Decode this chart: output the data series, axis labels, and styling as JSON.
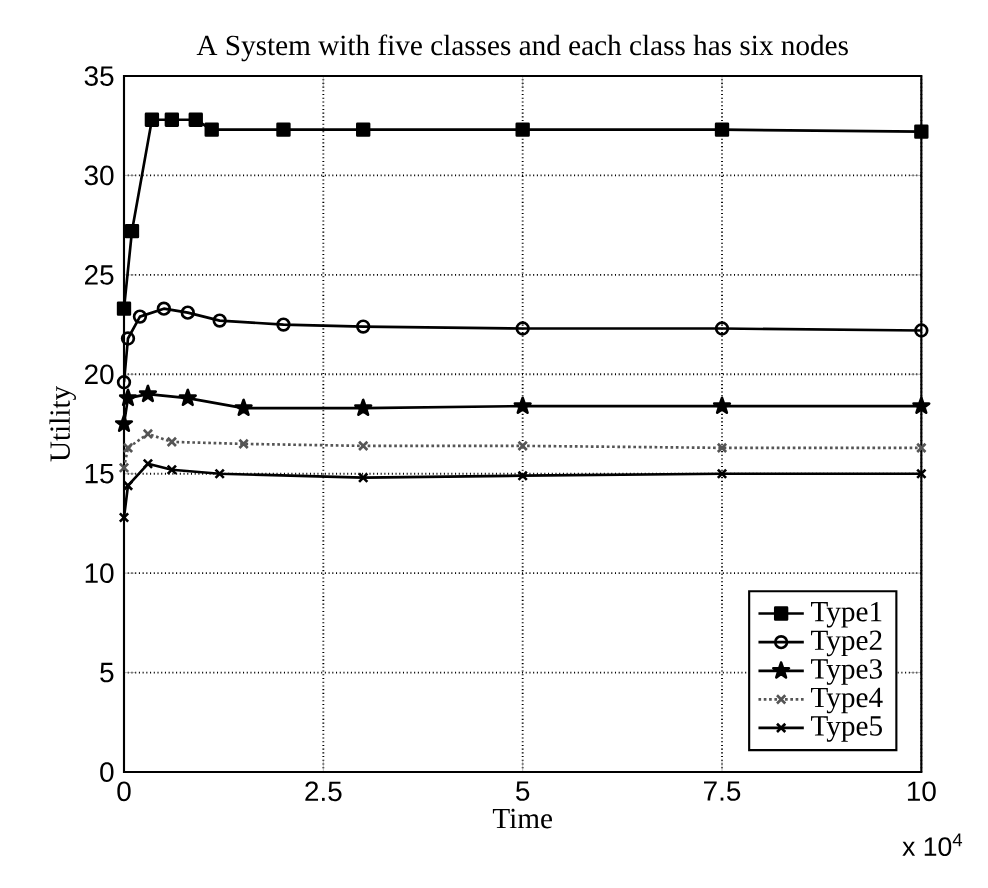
{
  "chart_data": {
    "type": "line",
    "title": "A System with five classes and each class has six nodes",
    "xlabel": "Time",
    "ylabel": "Utility",
    "annotations": [
      "x 10$^{4}$"
    ],
    "xlim": [
      0,
      10
    ],
    "ylim": [
      0,
      35
    ],
    "xticks": [
      0,
      2.5,
      5,
      7.5,
      10
    ],
    "yticks": [
      0,
      5,
      10,
      15,
      20,
      25,
      30,
      35
    ],
    "grid": true,
    "legend": "bottom right",
    "series": [
      {
        "name": "Type1",
        "color": "#000000",
        "marker": "square",
        "line_style": "solid",
        "x": [
          0,
          0.1,
          0.35,
          0.6,
          0.9,
          1.1,
          2,
          3,
          5,
          7.5,
          10
        ],
        "values": [
          23.3,
          27.2,
          32.8,
          32.8,
          32.8,
          32.3,
          32.3,
          32.3,
          32.3,
          32.3,
          32.2
        ]
      },
      {
        "name": "Type2",
        "color": "#000000",
        "marker": "circle",
        "line_style": "solid",
        "x": [
          0,
          0.05,
          0.2,
          0.5,
          0.8,
          1.2,
          2,
          3,
          5,
          7.5,
          10
        ],
        "values": [
          19.6,
          21.8,
          22.9,
          23.3,
          23.1,
          22.7,
          22.5,
          22.4,
          22.3,
          22.3,
          22.2
        ]
      },
      {
        "name": "Type3",
        "color": "#000000",
        "marker": "star",
        "line_style": "solid",
        "x": [
          0,
          0.05,
          0.3,
          0.8,
          1.5,
          3,
          5,
          7.5,
          10
        ],
        "values": [
          17.5,
          18.8,
          19.0,
          18.8,
          18.3,
          18.3,
          18.4,
          18.4,
          18.4
        ]
      },
      {
        "name": "Type4",
        "color": "#555555",
        "marker": "cross",
        "line_style": "dotted",
        "x": [
          0,
          0.05,
          0.3,
          0.6,
          1.5,
          3,
          5,
          7.5,
          10
        ],
        "values": [
          15.3,
          16.3,
          17.0,
          16.6,
          16.5,
          16.4,
          16.4,
          16.3,
          16.3
        ]
      },
      {
        "name": "Type5",
        "color": "#000000",
        "marker": "cross",
        "line_style": "solid",
        "x": [
          0,
          0.05,
          0.3,
          0.6,
          1.2,
          3,
          5,
          7.5,
          10
        ],
        "values": [
          12.8,
          14.4,
          15.5,
          15.2,
          15.0,
          14.8,
          14.9,
          15.0,
          15.0
        ]
      }
    ]
  }
}
